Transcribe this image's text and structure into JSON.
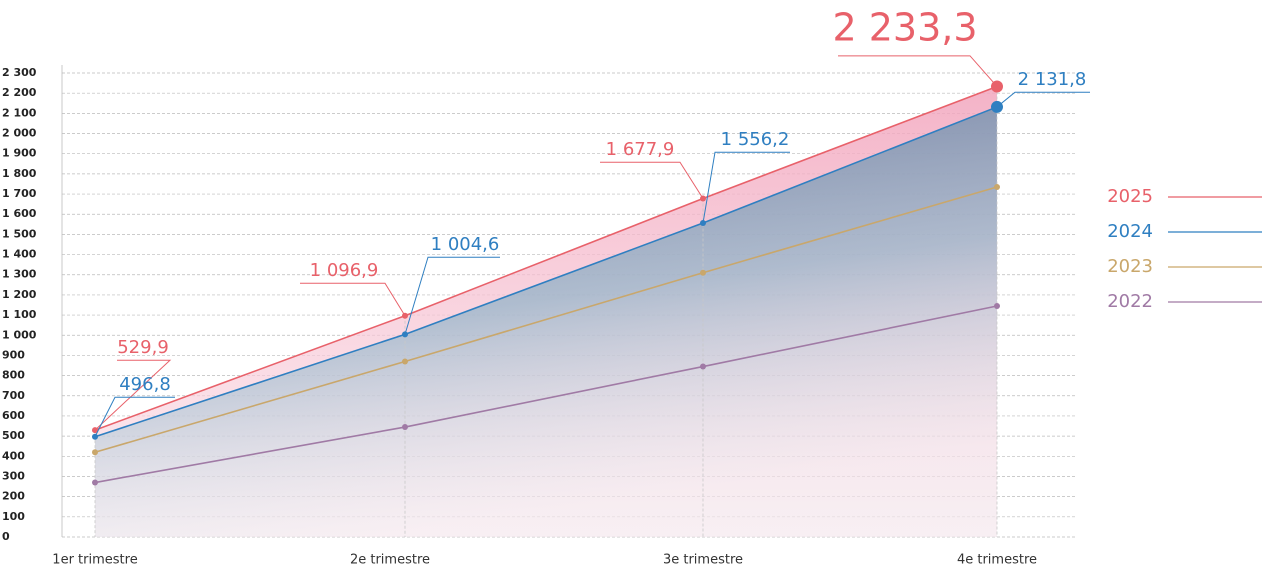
{
  "chart_data": {
    "type": "line",
    "categories": [
      "1er trimestre",
      "2e trimestre",
      "3e trimestre",
      "4e trimestre"
    ],
    "series": [
      {
        "name": "2025",
        "color": "#e8616a",
        "values": [
          529.9,
          1096.9,
          1677.9,
          2233.3
        ],
        "value_labels": [
          "529,9",
          "1 096,9",
          "1 677,9",
          "2 233,3"
        ]
      },
      {
        "name": "2024",
        "color": "#2f7fc1",
        "values": [
          496.8,
          1004.6,
          1556.2,
          2131.8
        ],
        "value_labels": [
          "496,8",
          "1 004,6",
          "1 556,2",
          "2 131,8"
        ]
      },
      {
        "name": "2023",
        "color": "#c9a76b",
        "values": [
          420,
          870,
          1310,
          1735
        ]
      },
      {
        "name": "2022",
        "color": "#a07aa5",
        "values": [
          270,
          545,
          845,
          1145
        ]
      }
    ],
    "ylim": [
      0,
      2300
    ],
    "yticks": [
      0,
      100,
      200,
      300,
      400,
      500,
      600,
      700,
      800,
      900,
      {
        "value": 1000,
        "label": "1 000"
      },
      {
        "value": 1100,
        "label": "1 100"
      },
      {
        "value": 1200,
        "label": "1 200"
      },
      {
        "value": 1300,
        "label": "1 300"
      },
      {
        "value": 1400,
        "label": "1 400"
      },
      {
        "value": 1500,
        "label": "1 500"
      },
      {
        "value": 1600,
        "label": "1 600"
      },
      {
        "value": 1700,
        "label": "1 700"
      },
      {
        "value": 1800,
        "label": "1 800"
      },
      {
        "value": 1900,
        "label": "1 900"
      },
      {
        "value": 2000,
        "label": "2 000"
      },
      {
        "value": 2100,
        "label": "2 100"
      },
      {
        "value": 2200,
        "label": "2 200"
      },
      {
        "value": 2300,
        "label": "2 300"
      }
    ],
    "grid": true,
    "legend": "right"
  }
}
